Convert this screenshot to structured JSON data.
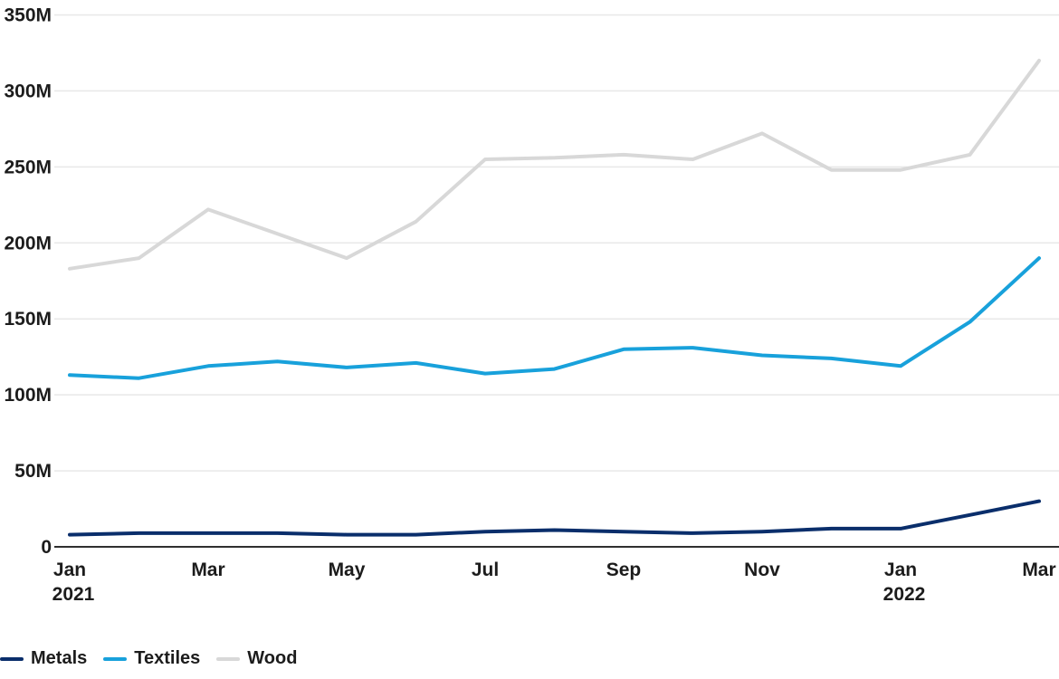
{
  "chart_data": {
    "type": "line",
    "title": "",
    "xlabel": "",
    "ylabel": "",
    "unit": "M",
    "grid": "horizontal",
    "legend_position": "bottom-left",
    "x": [
      "Jan 2021",
      "Feb 2021",
      "Mar 2021",
      "Apr 2021",
      "May 2021",
      "Jun 2021",
      "Jul 2021",
      "Aug 2021",
      "Sep 2021",
      "Oct 2021",
      "Nov 2021",
      "Dec 2021",
      "Jan 2022",
      "Feb 2022",
      "Mar 2022"
    ],
    "series": [
      {
        "name": "Metals",
        "color": "#0a2e6b",
        "values": [
          8,
          9,
          9,
          9,
          8,
          8,
          10,
          11,
          10,
          9,
          10,
          12,
          12,
          21,
          30
        ]
      },
      {
        "name": "Textiles",
        "color": "#18a1db",
        "values": [
          113,
          111,
          119,
          122,
          118,
          121,
          114,
          117,
          130,
          131,
          126,
          124,
          119,
          148,
          190
        ]
      },
      {
        "name": "Wood",
        "color": "#d8d8d8",
        "values": [
          183,
          190,
          222,
          206,
          190,
          214,
          255,
          256,
          258,
          255,
          272,
          248,
          248,
          258,
          320
        ]
      }
    ],
    "y_axis": {
      "min": 0,
      "max": 350,
      "tick_step": 50,
      "tick_labels": [
        "0",
        "50M",
        "100M",
        "150M",
        "200M",
        "250M",
        "300M",
        "350M"
      ]
    },
    "x_ticks": [
      {
        "index": 0,
        "label": "Jan",
        "year": "2021"
      },
      {
        "index": 2,
        "label": "Mar"
      },
      {
        "index": 4,
        "label": "May"
      },
      {
        "index": 6,
        "label": "Jul"
      },
      {
        "index": 8,
        "label": "Sep"
      },
      {
        "index": 10,
        "label": "Nov"
      },
      {
        "index": 12,
        "label": "Jan",
        "year": "2022"
      },
      {
        "index": 14,
        "label": "Mar"
      }
    ],
    "colors": {
      "axis_line": "#2f2f2f",
      "gridline": "#e8e8e8",
      "text": "#1c1c1c"
    }
  }
}
